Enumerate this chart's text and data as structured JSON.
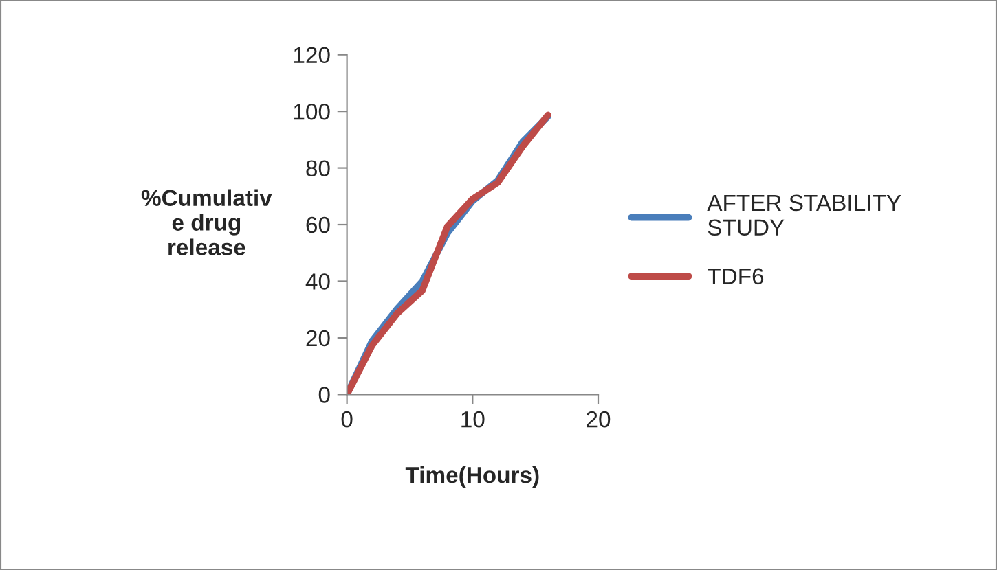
{
  "chart_data": {
    "type": "line",
    "xlabel": "Time(Hours)",
    "ylabel": "%Cumulativ\ne drug\nrelease",
    "x": [
      0,
      2,
      4,
      6,
      8,
      10,
      12,
      14,
      16
    ],
    "series": [
      {
        "name": "AFTER STABILITY\nSTUDY",
        "color": "#4a7ebb",
        "values": [
          0,
          18.9,
          30.3,
          40,
          57,
          68.3,
          75.6,
          89.3,
          98.2
        ]
      },
      {
        "name": "TDF6",
        "color": "#be4b48",
        "values": [
          0,
          17.3,
          28.6,
          36.7,
          59.4,
          69,
          74.8,
          87.7,
          98.7
        ]
      }
    ],
    "xlim": [
      0,
      20
    ],
    "xticks": [
      0,
      10,
      20
    ],
    "ylim": [
      0,
      120
    ],
    "yticks": [
      0,
      20,
      40,
      60,
      80,
      100,
      120
    ],
    "grid": false,
    "legend": "right",
    "marker": "none",
    "line_style": "solid"
  }
}
